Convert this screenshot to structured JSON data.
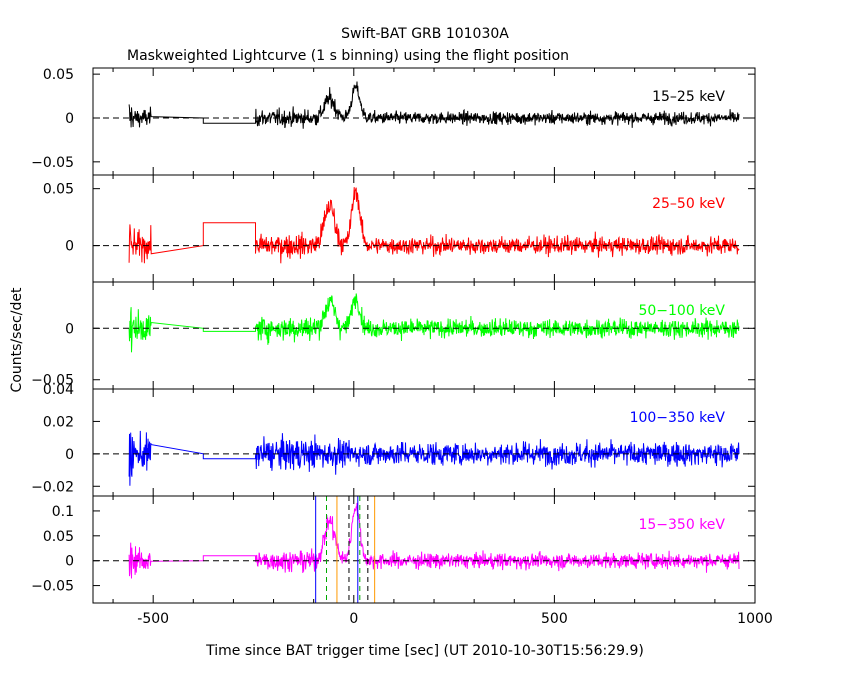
{
  "chart_data": {
    "type": "line",
    "title": "Swift-BAT GRB 101030A",
    "subtitle": "Maskweighted Lightcurve (1 s binning) using the flight position",
    "xlabel": "Time since BAT trigger time [sec] (UT 2010-10-30T15:56:29.9)",
    "ylabel": "Counts/sec/det",
    "xlim": [
      -650,
      1000
    ],
    "x_ticks": [
      -500,
      0,
      500,
      1000
    ],
    "x_tick_labels": [
      "-500",
      "0",
      "500",
      "1000"
    ],
    "grid": false,
    "panels": [
      {
        "name": "15-25 keV",
        "label": "15–25 keV",
        "color": "#000000",
        "ylim": [
          -0.065,
          0.057
        ],
        "y_ticks": [
          -0.05,
          0,
          0.05
        ],
        "y_tick_labels": [
          "−0.05",
          "0",
          "0.05"
        ],
        "noise": 0.0065,
        "gap_level": -0.006,
        "peaks": [
          {
            "t": -60,
            "a": 0.022,
            "w": 13
          },
          {
            "t": 5,
            "a": 0.035,
            "w": 10
          }
        ]
      },
      {
        "name": "25-50 keV",
        "label": "25–50 keV",
        "color": "#ff0000",
        "ylim": [
          -0.032,
          0.062
        ],
        "y_ticks": [
          0,
          0.05
        ],
        "y_tick_labels": [
          "0",
          "0.05"
        ],
        "noise": 0.007,
        "gap_level": 0.02,
        "peaks": [
          {
            "t": -60,
            "a": 0.035,
            "w": 13
          },
          {
            "t": 5,
            "a": 0.048,
            "w": 10
          }
        ]
      },
      {
        "name": "50-100 keV",
        "label": "50−100 keV",
        "color": "#00ff00",
        "ylim": [
          -0.059,
          0.045
        ],
        "y_ticks": [
          -0.05,
          0
        ],
        "y_tick_labels": [
          "−0.05",
          "0"
        ],
        "noise": 0.008,
        "gap_level": -0.003,
        "peaks": [
          {
            "t": -60,
            "a": 0.025,
            "w": 13
          },
          {
            "t": 5,
            "a": 0.03,
            "w": 10
          }
        ]
      },
      {
        "name": "100-350 keV",
        "label": "100−350 keV",
        "color": "#0000ff",
        "ylim": [
          -0.026,
          0.04
        ],
        "y_ticks": [
          -0.02,
          0,
          0.02,
          0.04
        ],
        "y_tick_labels": [
          "−0.02",
          "0",
          "0.02",
          "0.04"
        ],
        "noise": 0.0065,
        "gap_level": -0.003,
        "peaks": []
      },
      {
        "name": "15-350 keV",
        "label": "15−350 keV",
        "color": "#ff00ff",
        "ylim": [
          -0.085,
          0.13
        ],
        "y_ticks": [
          -0.05,
          0,
          0.05,
          0.1
        ],
        "y_tick_labels": [
          "−0.05",
          "0",
          "0.05",
          "0.1"
        ],
        "noise": 0.014,
        "gap_level": 0.01,
        "peaks": [
          {
            "t": -60,
            "a": 0.08,
            "w": 13
          },
          {
            "t": 5,
            "a": 0.11,
            "w": 10
          }
        ]
      }
    ],
    "data_intervals": [
      [
        -560,
        -505
      ],
      [
        -245,
        960
      ]
    ],
    "gap_step_time": -375,
    "vertical_markers": [
      {
        "x": -95,
        "color": "#0000ff",
        "style": "solid"
      },
      {
        "x": -68,
        "color": "#00aa00",
        "style": "dashed"
      },
      {
        "x": -42,
        "color": "#ff9900",
        "style": "solid"
      },
      {
        "x": -12,
        "color": "#000000",
        "style": "dashed"
      },
      {
        "x": 10,
        "color": "#0000ff",
        "style": "solid"
      },
      {
        "x": 15,
        "color": "#00aa00",
        "style": "dashed"
      },
      {
        "x": 35,
        "color": "#000000",
        "style": "dashed"
      },
      {
        "x": 52,
        "color": "#ff9900",
        "style": "solid"
      }
    ]
  }
}
